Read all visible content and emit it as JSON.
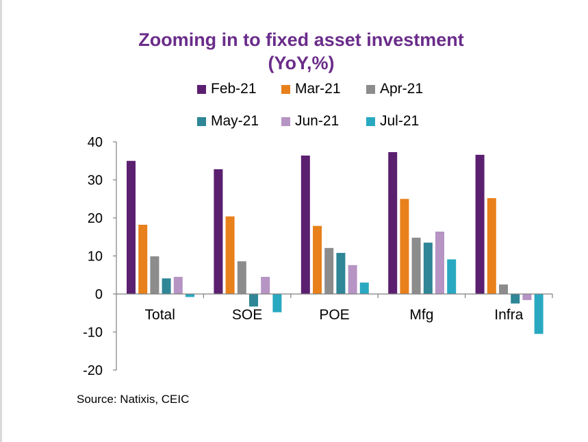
{
  "chart_data": {
    "type": "bar",
    "title": "Zooming in to fixed asset investment",
    "subtitle": "(YoY,%)",
    "categories": [
      "Total",
      "SOE",
      "POE",
      "Mfg",
      "Infra"
    ],
    "series": [
      {
        "name": "Feb-21",
        "color": "#5b1f70",
        "values": [
          35.0,
          32.8,
          36.4,
          37.3,
          36.6
        ]
      },
      {
        "name": "Mar-21",
        "color": "#e8801b",
        "values": [
          18.2,
          20.4,
          17.9,
          25.0,
          25.2
        ]
      },
      {
        "name": "Apr-21",
        "color": "#8c8c8c",
        "values": [
          9.9,
          8.6,
          12.1,
          14.8,
          2.5
        ]
      },
      {
        "name": "May-21",
        "color": "#2e8696",
        "values": [
          4.1,
          -3.3,
          10.8,
          13.5,
          -2.5
        ]
      },
      {
        "name": "Jun-21",
        "color": "#b694c4",
        "values": [
          4.5,
          4.5,
          7.6,
          16.4,
          -1.6
        ]
      },
      {
        "name": "Jul-21",
        "color": "#29a9c1",
        "values": [
          -0.8,
          -4.8,
          3.0,
          9.1,
          -10.5
        ]
      }
    ],
    "y_ticks": [
      "40",
      "30",
      "20",
      "10",
      "0",
      "-10",
      "-20"
    ],
    "ylim": [
      -20,
      40
    ],
    "xlabel": "",
    "ylabel": "",
    "grid": false,
    "legend_position": "top"
  },
  "source": "Source: Natixis, CEIC"
}
